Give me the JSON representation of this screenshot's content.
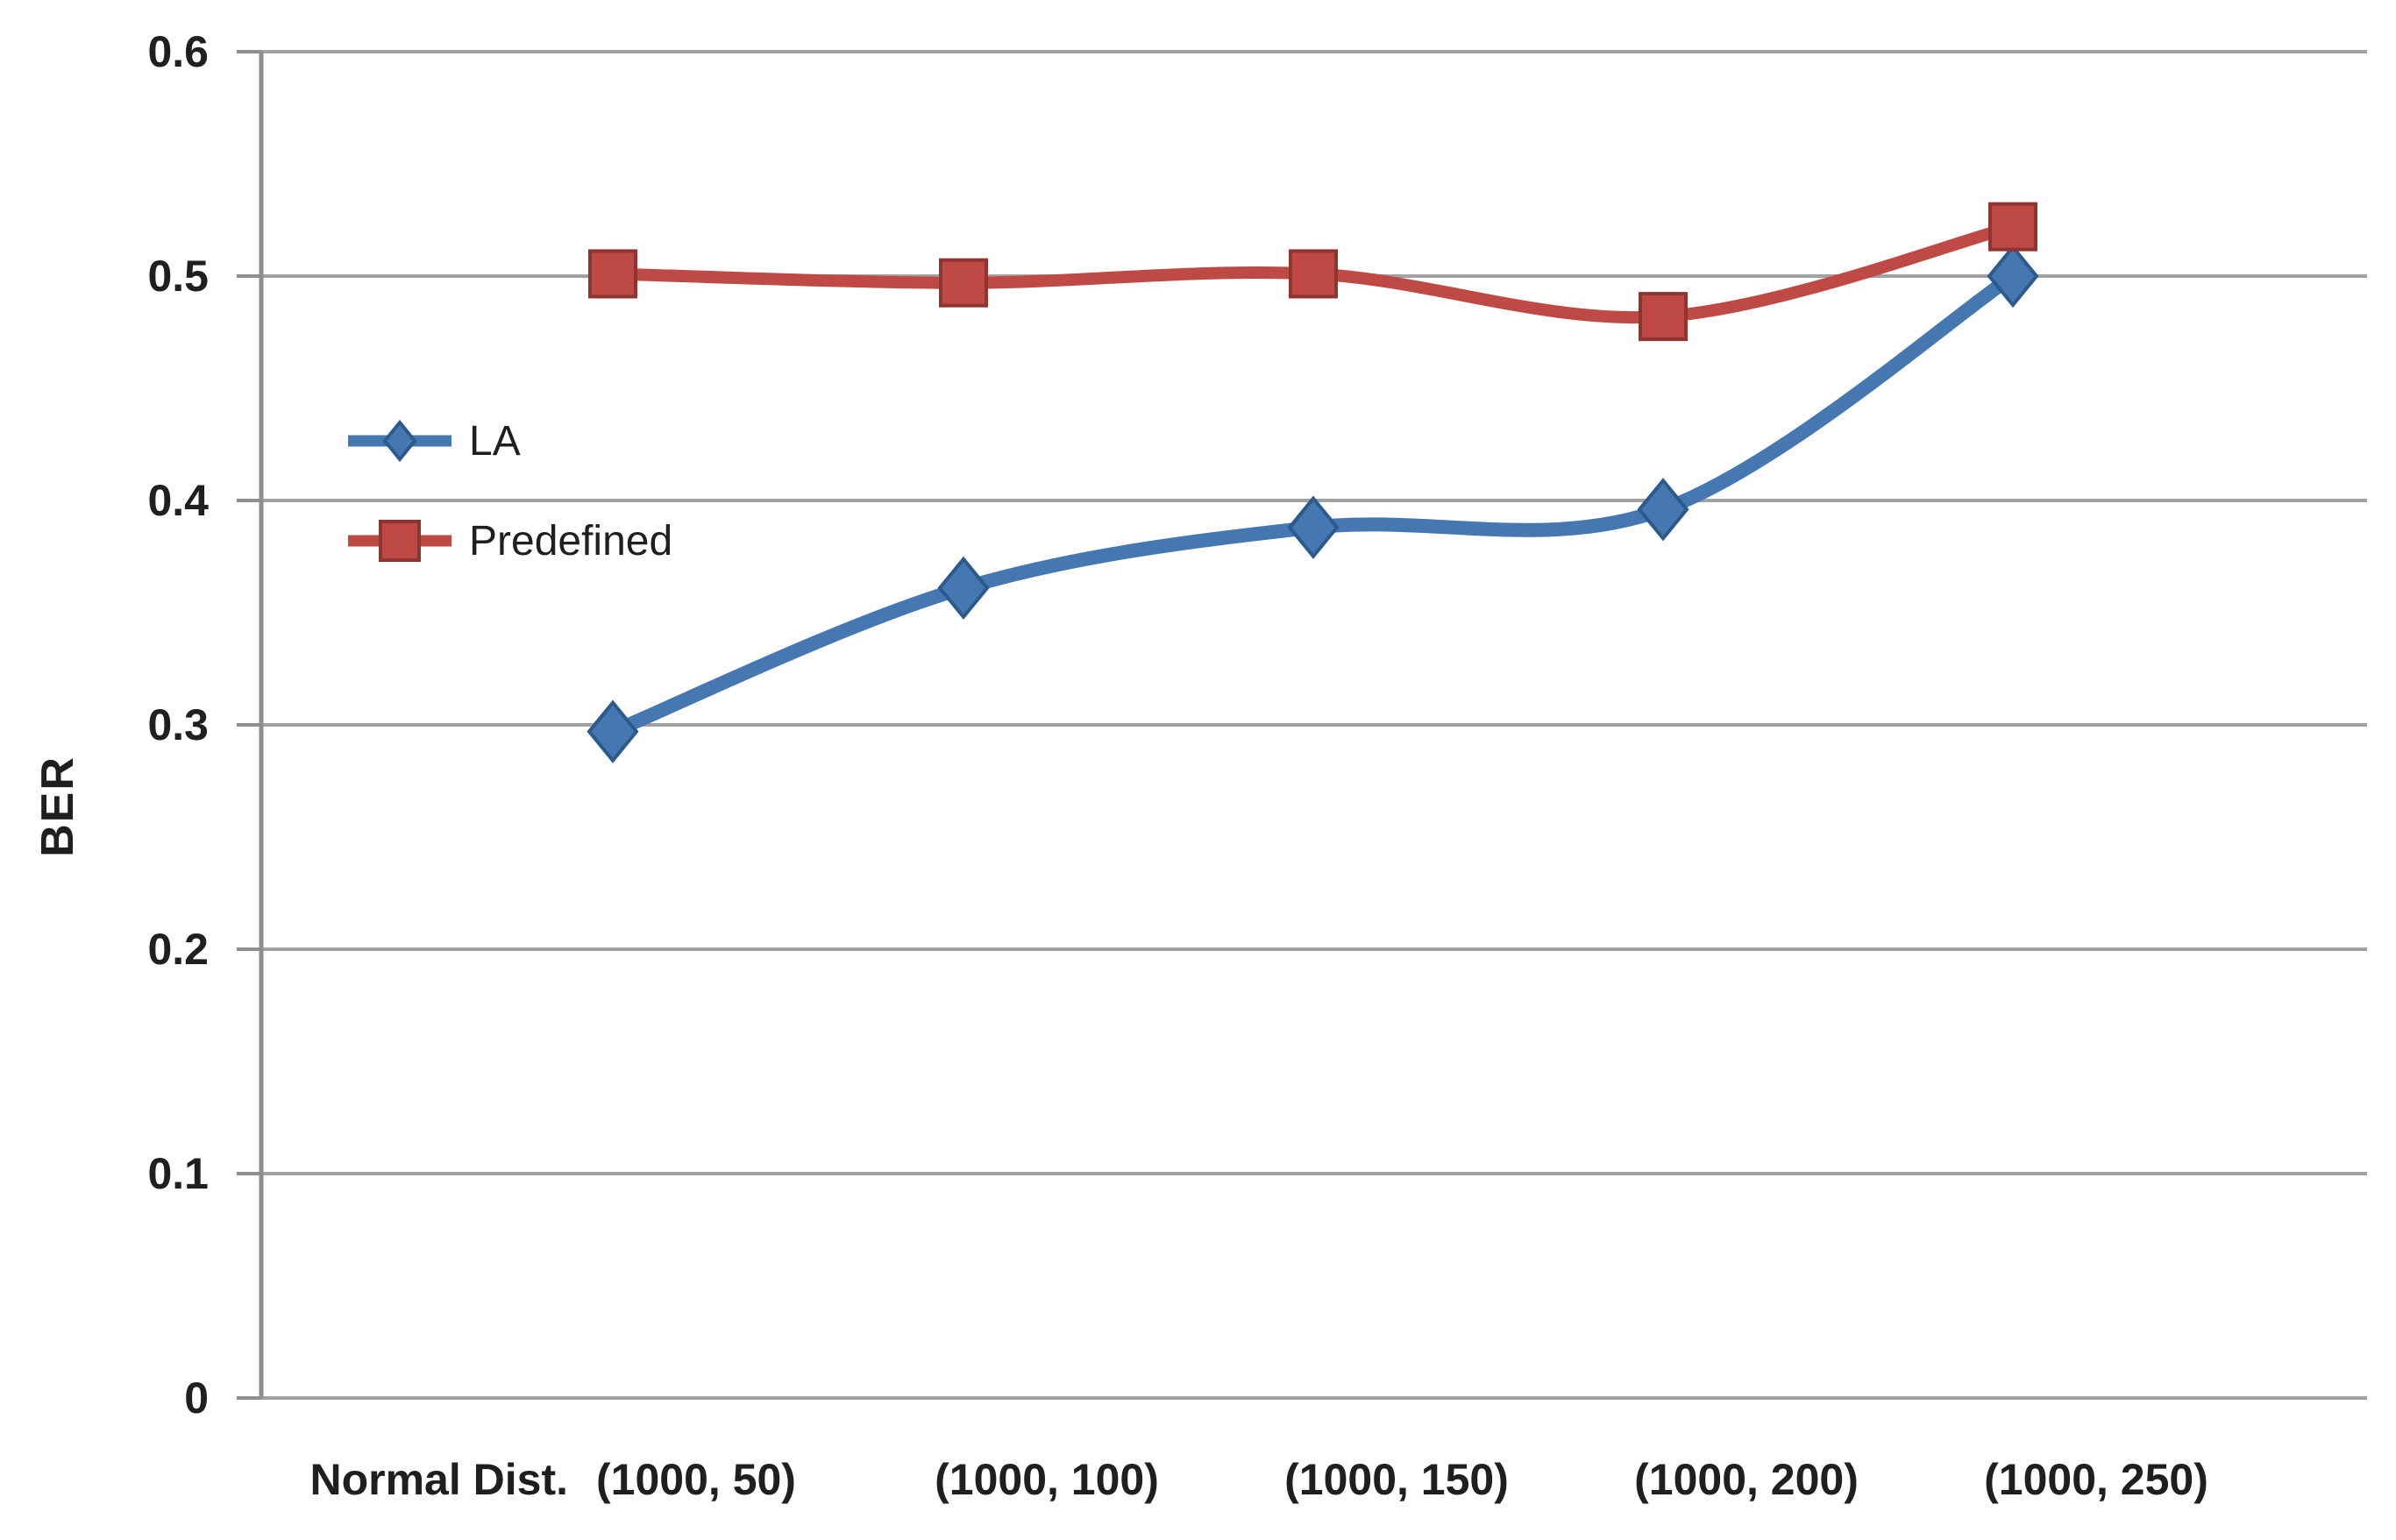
{
  "chart_data": {
    "type": "line",
    "title": "",
    "ylabel": "BER",
    "x_axis_prefix_label": "Normal Dist.",
    "categories": [
      "(1000, 50)",
      "(1000, 100)",
      "(1000, 150)",
      "(1000, 200)",
      "(1000, 250)"
    ],
    "series": [
      {
        "name": "LA",
        "color": "#4577b1",
        "marker": "diamond",
        "marker_border": "#2c5a8c",
        "values": [
          0.297,
          0.361,
          0.388,
          0.396,
          0.5
        ]
      },
      {
        "name": "Predefined",
        "color": "#bf4a45",
        "marker": "square",
        "marker_border": "#8f3431",
        "values": [
          0.501,
          0.497,
          0.501,
          0.482,
          0.522
        ]
      }
    ],
    "ylim": [
      0,
      0.6
    ],
    "yticks": [
      0,
      0.1,
      0.2,
      0.3,
      0.4,
      0.5,
      0.6
    ],
    "ytick_labels": [
      "0",
      "0.1",
      "0.2",
      "0.3",
      "0.4",
      "0.5",
      "0.6"
    ],
    "grid": true,
    "line_style": "smooth",
    "legend": {
      "position": "inside-top-left",
      "entries": [
        "LA",
        "Predefined"
      ]
    },
    "colors": {
      "grid": "#a2a2a2",
      "axis": "#8f8f8f",
      "text": "#1f1f1f",
      "background": "#ffffff"
    }
  }
}
